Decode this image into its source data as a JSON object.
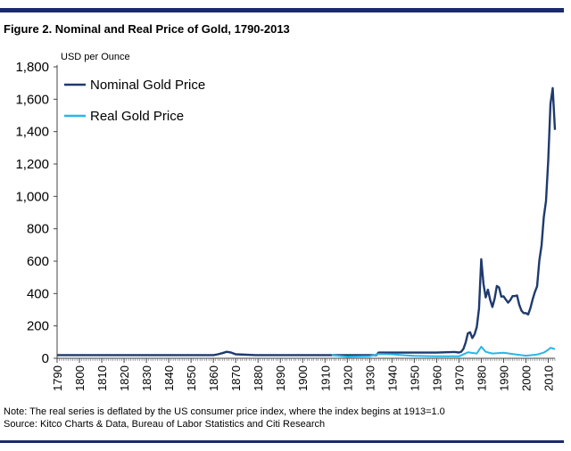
{
  "figure_title": "Figure 2. Nominal and Real Price of Gold, 1790-2013",
  "note": "Note: The real series is deflated by the US consumer price index, where the index begins at 1913=1.0",
  "source": "Source: Kitco Charts & Data, Bureau of Labor Statistics and Citi Research",
  "colors": {
    "rule": "#1a2a6b",
    "nominal": "#1f3a6e",
    "real": "#29b6e8"
  },
  "chart_data": {
    "type": "line",
    "title": "",
    "xlabel": "",
    "ylabel": "USD per Ounce",
    "xlim": [
      1790,
      2013
    ],
    "ylim": [
      0,
      1800
    ],
    "grid": false,
    "legend_position": "top-left",
    "y_ticks": [
      "0",
      "200",
      "400",
      "600",
      "800",
      "1,000",
      "1,200",
      "1,400",
      "1,600",
      "1,800"
    ],
    "x_ticks": [
      "1790",
      "1800",
      "1810",
      "1820",
      "1830",
      "1840",
      "1850",
      "1860",
      "1870",
      "1880",
      "1890",
      "1900",
      "1910",
      "1920",
      "1930",
      "1940",
      "1950",
      "1960",
      "1970",
      "1980",
      "1990",
      "2000",
      "2010"
    ],
    "series": [
      {
        "name": "Nominal Gold Price",
        "color": "#1f3a6e",
        "x": [
          1790,
          1860,
          1862,
          1864,
          1866,
          1868,
          1870,
          1879,
          1900,
          1933,
          1934,
          1960,
          1968,
          1970,
          1971,
          1972,
          1973,
          1974,
          1975,
          1976,
          1977,
          1978,
          1979,
          1980,
          1981,
          1982,
          1983,
          1984,
          1985,
          1986,
          1987,
          1988,
          1989,
          1990,
          1991,
          1992,
          1993,
          1994,
          1995,
          1996,
          1997,
          1998,
          1999,
          2000,
          2001,
          2002,
          2003,
          2004,
          2005,
          2006,
          2007,
          2008,
          2009,
          2010,
          2011,
          2012,
          2013
        ],
        "values": [
          20,
          20,
          25,
          32,
          40,
          35,
          25,
          20,
          20,
          20,
          35,
          35,
          39,
          36,
          41,
          58,
          97,
          154,
          161,
          125,
          148,
          193,
          307,
          612,
          460,
          376,
          424,
          361,
          317,
          368,
          447,
          437,
          381,
          383,
          362,
          344,
          360,
          384,
          384,
          388,
          331,
          294,
          279,
          279,
          271,
          310,
          364,
          409,
          445,
          604,
          697,
          872,
          972,
          1225,
          1572,
          1669,
          1411
        ]
      },
      {
        "name": "Real Gold Price",
        "color": "#29b6e8",
        "x": [
          1913,
          1920,
          1930,
          1933,
          1934,
          1940,
          1945,
          1950,
          1960,
          1970,
          1974,
          1978,
          1980,
          1982,
          1985,
          1990,
          1995,
          2000,
          2005,
          2008,
          2010,
          2011,
          2012,
          2013
        ],
        "values": [
          20,
          10,
          13,
          23,
          27,
          25,
          19,
          15,
          12,
          12,
          37,
          30,
          71,
          40,
          30,
          34,
          25,
          16,
          23,
          35,
          53,
          65,
          61,
          56
        ]
      }
    ]
  }
}
